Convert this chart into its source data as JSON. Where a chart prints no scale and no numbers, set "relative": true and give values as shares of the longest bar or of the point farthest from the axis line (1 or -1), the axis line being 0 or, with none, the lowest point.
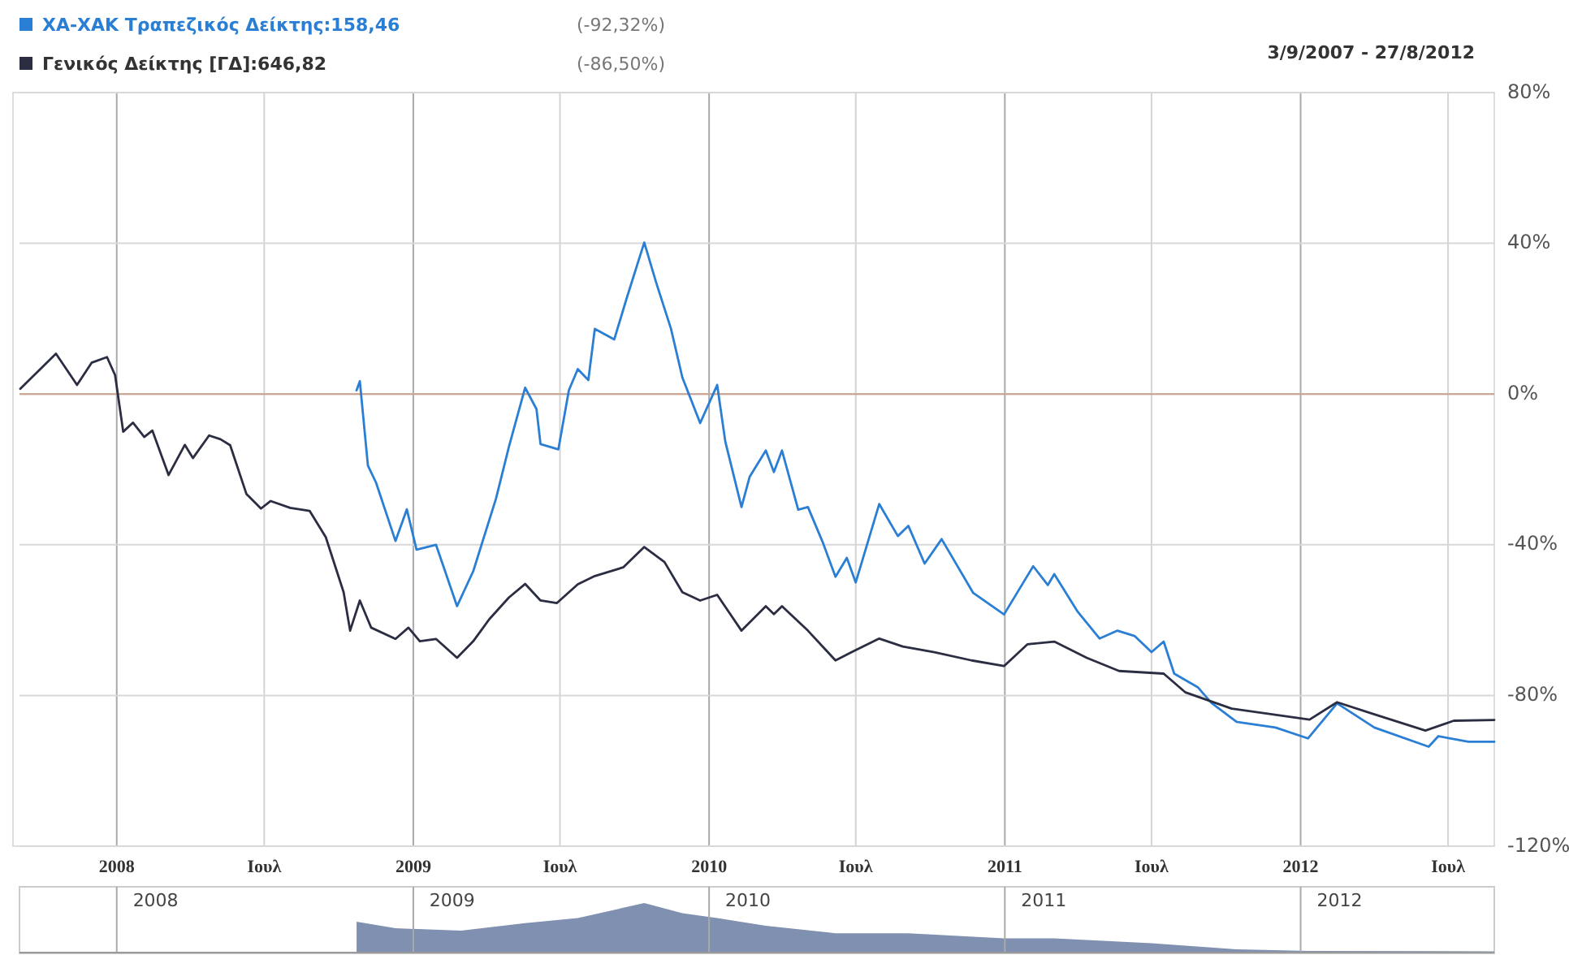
{
  "chart_data": [
    {
      "type": "line",
      "subtitle": "3/9/2007 - 27/8/2012",
      "annotations": [
        "(-92,32%)",
        "(-86,50%)"
      ],
      "legend": "top left",
      "grid": true,
      "xlim": [
        "2007-09-03",
        "2012-08-27"
      ],
      "xticks": [
        {
          "value": "2008-01-01",
          "label": "2008"
        },
        {
          "value": "2008-07-01",
          "label": "Ιουλ"
        },
        {
          "value": "2009-01-01",
          "label": "2009"
        },
        {
          "value": "2009-07-01",
          "label": "Ιουλ"
        },
        {
          "value": "2010-01-01",
          "label": "2010"
        },
        {
          "value": "2010-07-01",
          "label": "Ιουλ"
        },
        {
          "value": "2011-01-01",
          "label": "2011"
        },
        {
          "value": "2011-07-01",
          "label": "Ιουλ"
        },
        {
          "value": "2012-01-01",
          "label": "2012"
        },
        {
          "value": "2012-07-01",
          "label": "Ιουλ"
        }
      ],
      "ylim": [
        -120,
        80
      ],
      "yticks": [
        {
          "value": 80,
          "label": "80%"
        },
        {
          "value": 40,
          "label": "40%"
        },
        {
          "value": 0,
          "label": "0%"
        },
        {
          "value": -40,
          "label": "-40%"
        },
        {
          "value": -80,
          "label": "-80%"
        },
        {
          "value": -120,
          "label": "-120%"
        }
      ],
      "ref_lines": [
        {
          "axis": "y",
          "value": 0,
          "color": "#c8a08c"
        }
      ],
      "series": [
        {
          "name": "ΧΑ-ΧΑΚ Τραπεζικός Δείκτης:158,46",
          "color": "#2a7fd4",
          "x": [
            "2008-10-23",
            "2008-10-27",
            "2008-11-06",
            "2008-11-16",
            "2008-12-10",
            "2008-12-24",
            "2009-01-05",
            "2009-01-29",
            "2009-02-24",
            "2009-03-16",
            "2009-04-13",
            "2009-04-29",
            "2009-05-19",
            "2009-06-02",
            "2009-06-07",
            "2009-06-29",
            "2009-07-12",
            "2009-07-23",
            "2009-08-05",
            "2009-08-13",
            "2009-09-06",
            "2009-09-21",
            "2009-10-13",
            "2009-10-28",
            "2009-11-15",
            "2009-11-29",
            "2009-12-21",
            "2010-01-11",
            "2010-01-21",
            "2010-02-10",
            "2010-02-20",
            "2010-03-12",
            "2010-03-22",
            "2010-04-01",
            "2010-04-21",
            "2010-05-03",
            "2010-05-21",
            "2010-06-06",
            "2010-06-20",
            "2010-07-01",
            "2010-07-30",
            "2010-08-22",
            "2010-09-04",
            "2010-09-24",
            "2010-10-15",
            "2010-11-23",
            "2010-12-31",
            "2011-02-05",
            "2011-02-23",
            "2011-03-03",
            "2011-04-01",
            "2011-04-28",
            "2011-05-20",
            "2011-06-10",
            "2011-07-01",
            "2011-07-16",
            "2011-07-29",
            "2011-08-27",
            "2011-09-13",
            "2011-10-14",
            "2011-12-01",
            "2012-01-10",
            "2012-02-15",
            "2012-04-01",
            "2012-06-07",
            "2012-06-19",
            "2012-07-26",
            "2012-08-27"
          ],
          "values": [
            1,
            3.4,
            -19,
            -23.5,
            -39,
            -30.6,
            -41.3,
            -40,
            -56.3,
            -47,
            -27.8,
            -14,
            1.7,
            -4,
            -13.3,
            -14.7,
            1,
            6.6,
            3.7,
            17.3,
            14.5,
            25.2,
            40.2,
            29.4,
            17.3,
            4.4,
            -7.7,
            2.4,
            -12.6,
            -30,
            -22,
            -15,
            -20.7,
            -15,
            -30.7,
            -30,
            -39.2,
            -48.5,
            -43.5,
            -50,
            -29.2,
            -37.7,
            -35,
            -45,
            -38.5,
            -52.8,
            -58.5,
            -45.7,
            -50.7,
            -47.8,
            -57.8,
            -64.9,
            -62.8,
            -64.2,
            -68.5,
            -65.7,
            -74.2,
            -77.8,
            -82,
            -87,
            -88.5,
            -91.4,
            -82.1,
            -88.5,
            -93.6,
            -90.8,
            -92.3,
            -92.3
          ]
        },
        {
          "name": "Γενικός Δείκτης [ΓΔ]:646,82",
          "color": "#2b2d42",
          "x": [
            "2007-09-04",
            "2007-10-18",
            "2007-11-13",
            "2007-12-01",
            "2007-12-20",
            "2007-12-30",
            "2008-01-09",
            "2008-01-21",
            "2008-02-04",
            "2008-02-14",
            "2008-03-05",
            "2008-03-25",
            "2008-04-04",
            "2008-04-24",
            "2008-05-08",
            "2008-05-20",
            "2008-06-09",
            "2008-06-27",
            "2008-07-09",
            "2008-08-02",
            "2008-08-26",
            "2008-09-05",
            "2008-09-15",
            "2008-10-07",
            "2008-10-15",
            "2008-10-27",
            "2008-11-10",
            "2008-12-10",
            "2008-12-26",
            "2009-01-09",
            "2009-01-29",
            "2009-02-24",
            "2009-03-16",
            "2009-04-05",
            "2009-04-29",
            "2009-05-19",
            "2009-06-07",
            "2009-06-27",
            "2009-07-23",
            "2009-08-13",
            "2009-09-17",
            "2009-10-13",
            "2009-11-07",
            "2009-11-29",
            "2009-12-21",
            "2010-01-11",
            "2010-02-10",
            "2010-03-12",
            "2010-03-22",
            "2010-04-01",
            "2010-05-03",
            "2010-06-06",
            "2010-06-26",
            "2010-07-30",
            "2010-08-28",
            "2010-10-06",
            "2010-11-21",
            "2010-12-31",
            "2011-01-29",
            "2011-03-03",
            "2011-04-12",
            "2011-05-22",
            "2011-07-16",
            "2011-08-12",
            "2011-10-08",
            "2012-01-12",
            "2012-02-15",
            "2012-04-01",
            "2012-06-03",
            "2012-07-08",
            "2012-08-27"
          ],
          "values": [
            1.4,
            10.7,
            2.4,
            8.3,
            9.8,
            5,
            -10,
            -7.6,
            -11.4,
            -9.7,
            -21.5,
            -13.5,
            -17,
            -11,
            -12,
            -13.6,
            -26.5,
            -30.4,
            -28.4,
            -30.2,
            -31,
            -34.5,
            -38,
            -52.6,
            -62.8,
            -54.8,
            -62,
            -65,
            -62,
            -65.6,
            -65,
            -70,
            -65.6,
            -59.7,
            -54,
            -50.4,
            -54.8,
            -55.5,
            -50.5,
            -48.3,
            -46,
            -40.6,
            -44.6,
            -52.6,
            -54.8,
            -53.3,
            -62.8,
            -56.3,
            -58.4,
            -56.3,
            -62.8,
            -70.7,
            -68.5,
            -64.9,
            -67,
            -68.5,
            -70.7,
            -72.2,
            -66.4,
            -65.7,
            -70,
            -73.5,
            -74.2,
            -79.2,
            -83.5,
            -86.4,
            -81.8,
            -85,
            -89.3,
            -86.7,
            -86.5
          ]
        }
      ]
    },
    {
      "type": "area",
      "relative": true,
      "tick_labels": "x",
      "grid": "x",
      "color": "#8090b0",
      "xlim": [
        "2007-09-03",
        "2012-08-27"
      ],
      "xticks": [
        {
          "value": "2008-01-01",
          "label": null
        },
        {
          "value": "2008-02-18",
          "label": "2008"
        },
        {
          "value": "2009-01-01",
          "label": null
        },
        {
          "value": "2009-02-18",
          "label": "2009"
        },
        {
          "value": "2010-01-01",
          "label": null
        },
        {
          "value": "2010-02-18",
          "label": "2010"
        },
        {
          "value": "2011-01-01",
          "label": null
        },
        {
          "value": "2011-02-18",
          "label": "2011"
        },
        {
          "value": "2012-01-01",
          "label": null
        },
        {
          "value": "2012-02-18",
          "label": "2012"
        }
      ],
      "x": [
        "2008-10-23",
        "2008-12-10",
        "2009-03-01",
        "2009-05-19",
        "2009-07-23",
        "2009-10-13",
        "2009-11-29",
        "2010-01-11",
        "2010-03-12",
        "2010-06-06",
        "2010-09-04",
        "2010-12-31",
        "2011-03-03",
        "2011-07-01",
        "2011-10-14",
        "2012-01-10",
        "2012-08-27"
      ],
      "values": [
        0.63,
        0.5,
        0.45,
        0.6,
        0.7,
        1,
        0.8,
        0.7,
        0.55,
        0.4,
        0.4,
        0.3,
        0.3,
        0.2,
        0.08,
        0.05,
        0.04
      ]
    }
  ]
}
